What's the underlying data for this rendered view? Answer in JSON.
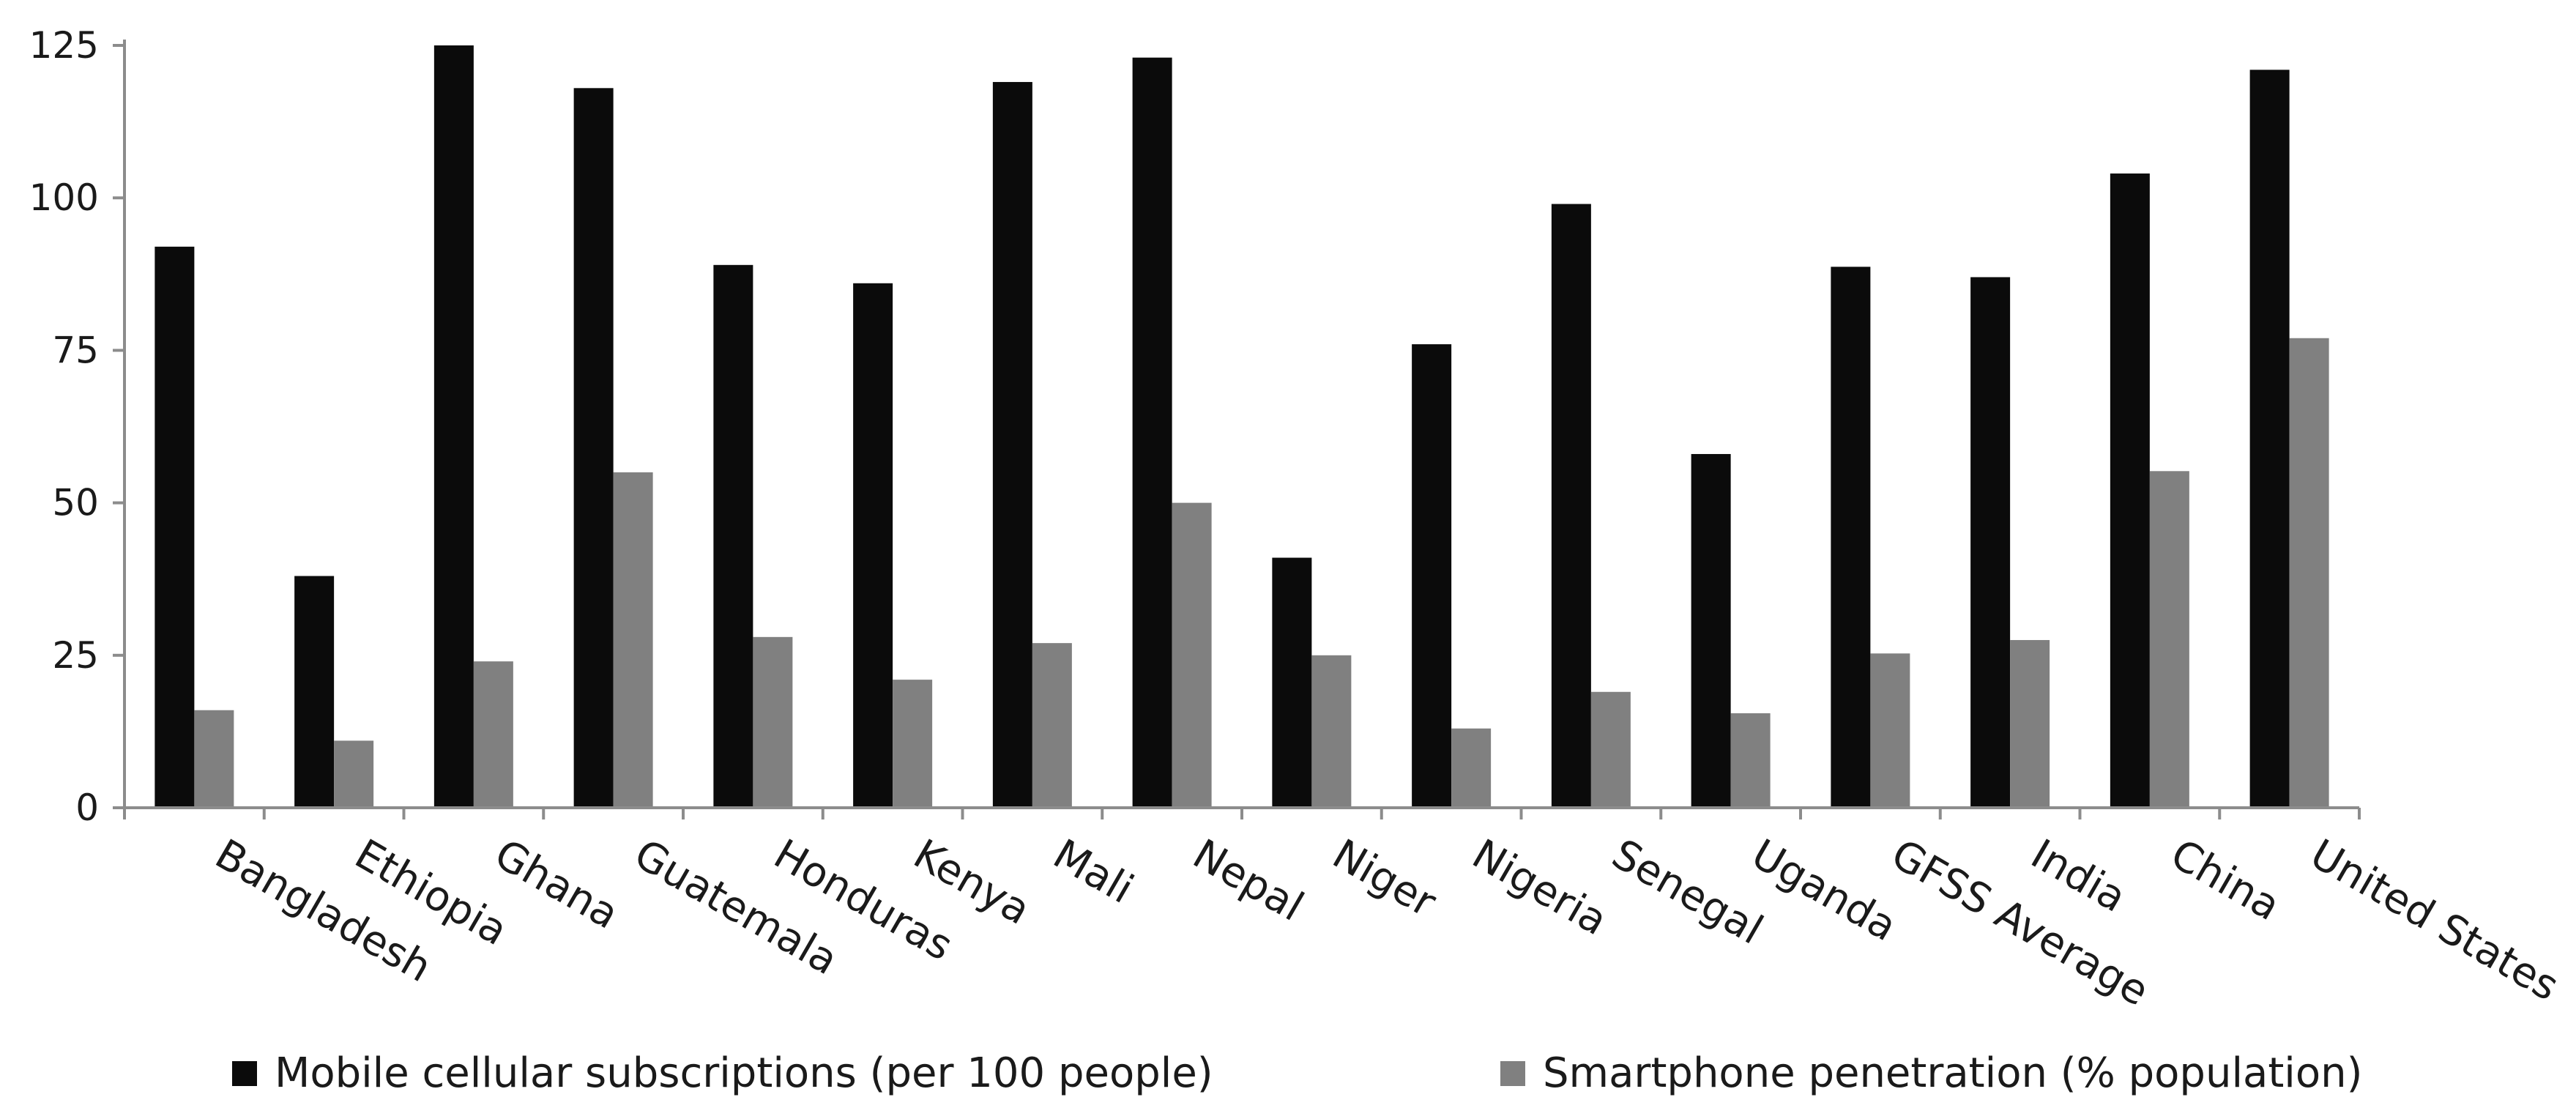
{
  "chart_data": {
    "type": "bar",
    "categories": [
      "Bangladesh",
      "Ethiopia",
      "Ghana",
      "Guatemala",
      "Honduras",
      "Kenya",
      "Mali",
      "Nepal",
      "Niger",
      "Nigeria",
      "Senegal",
      "Uganda",
      "GFSS Average",
      "India",
      "China",
      "United States"
    ],
    "series": [
      {
        "name": "Mobile cellular subscriptions (per 100 people)",
        "color": "#0b0b0b",
        "values": [
          92,
          38,
          125,
          118,
          89,
          86,
          119,
          123,
          41,
          76,
          99,
          58,
          88.7,
          87,
          104,
          121
        ]
      },
      {
        "name": "Smartphone penetration (% population)",
        "color": "#808080",
        "values": [
          16,
          11,
          24,
          55,
          28,
          21,
          27,
          50,
          25,
          13,
          19,
          15.5,
          25.3,
          27.5,
          55.2,
          77
        ]
      }
    ],
    "title": "",
    "xlabel": "",
    "ylabel": "",
    "ylim": [
      0,
      125
    ],
    "yticks": [
      "0",
      "25",
      "50",
      "75",
      "100",
      "125"
    ],
    "grid": false,
    "legend_position": "bottom"
  }
}
